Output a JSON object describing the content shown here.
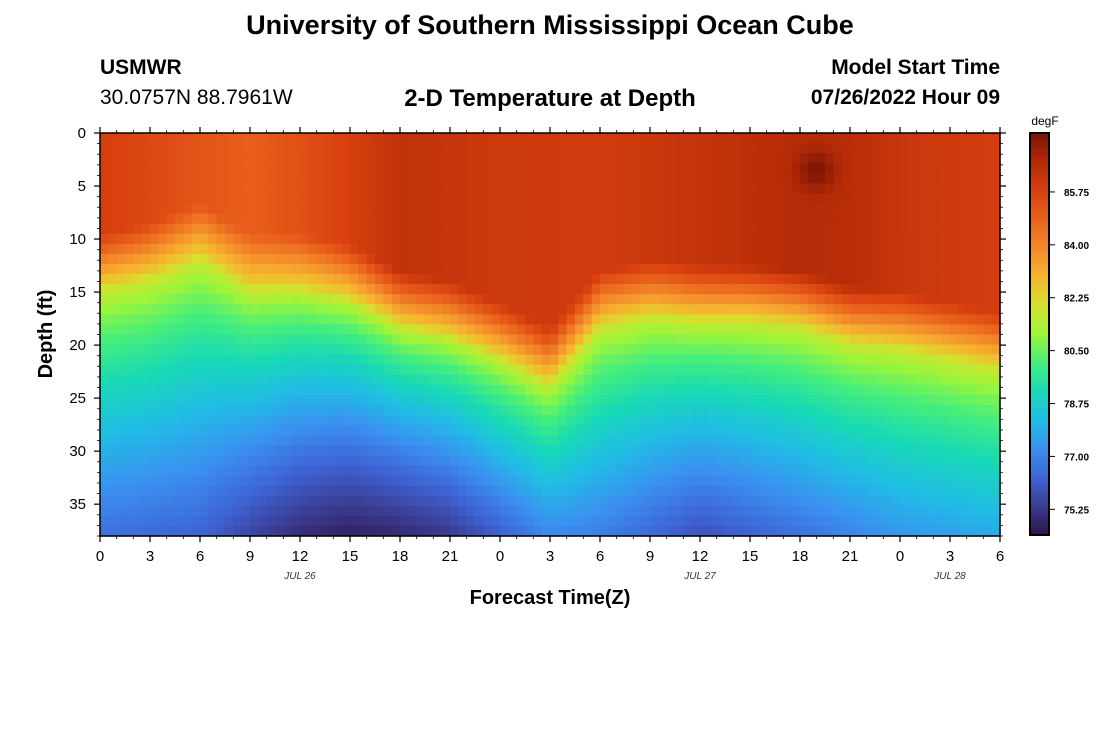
{
  "page": {
    "title_top": "University of Southern Mississippi Ocean Cube",
    "title_bottom": "University of Southern Mississippi Ocean Cube",
    "station_id": "USMWR",
    "coordinates": "30.0757N  88.7961W",
    "subtitle": "2-D Temperature at Depth",
    "model_start_label": "Model Start Time",
    "model_start_value": "07/26/2022 Hour 09"
  },
  "chart_data": {
    "type": "heatmap",
    "title": "2-D Temperature at Depth",
    "xlabel": "Forecast Time(Z)",
    "ylabel": "Depth (ft)",
    "x_ticks": [
      "0",
      "3",
      "6",
      "9",
      "12",
      "15",
      "18",
      "21",
      "0",
      "3",
      "6",
      "9",
      "12",
      "15",
      "18",
      "21",
      "0",
      "3",
      "6"
    ],
    "x_tick_hours": [
      0,
      3,
      6,
      9,
      12,
      15,
      18,
      21,
      24,
      27,
      30,
      33,
      36,
      39,
      42,
      45,
      48,
      51,
      54
    ],
    "date_labels": [
      {
        "text": "JUL 26",
        "hour": 12
      },
      {
        "text": "JUL 27",
        "hour": 36
      },
      {
        "text": "JUL 28",
        "hour": 51
      }
    ],
    "xlim": [
      0,
      54
    ],
    "y_ticks": [
      "0",
      "5",
      "10",
      "15",
      "20",
      "25",
      "30",
      "35"
    ],
    "y_tick_values": [
      0,
      5,
      10,
      15,
      20,
      25,
      30,
      35
    ],
    "ylim": [
      0,
      38
    ],
    "colorbar": {
      "unit": "degF",
      "ticks": [
        "85.75",
        "84.00",
        "82.25",
        "80.50",
        "78.75",
        "77.00",
        "75.25"
      ],
      "tick_values": [
        85.75,
        84.0,
        82.25,
        80.5,
        78.75,
        77.0,
        75.25
      ],
      "range": [
        74.4,
        87.7
      ],
      "colors": [
        "#2e1548",
        "#3a3b90",
        "#3e63d4",
        "#3b8ff0",
        "#20bde5",
        "#18d9b5",
        "#45ee7c",
        "#9cf53a",
        "#d5e12d",
        "#f7b42f",
        "#f3892a",
        "#e9601c",
        "#d8400f",
        "#b22a07",
        "#7a1204"
      ]
    },
    "series": [
      {
        "name": "thermocline_depth_ft",
        "x_hours": [
          0,
          3,
          6,
          9,
          12,
          15,
          18,
          21,
          24,
          27,
          30,
          33,
          36,
          39,
          42,
          45,
          48,
          51,
          54
        ],
        "values": [
          14.5,
          13.5,
          11.5,
          14.5,
          14.5,
          15.5,
          18,
          19,
          21,
          23.5,
          18,
          17,
          17.5,
          17.5,
          18,
          19.5,
          20,
          21,
          22
        ]
      },
      {
        "name": "bottom_min_temp_degF",
        "x_hours": [
          0,
          6,
          9,
          12,
          15,
          18,
          21,
          24,
          27,
          30,
          36,
          42,
          48,
          54
        ],
        "values": [
          76.6,
          76.3,
          75.6,
          75.0,
          74.7,
          74.9,
          75.3,
          76.2,
          77.1,
          76.9,
          75.9,
          76.6,
          77.4,
          77.8
        ]
      },
      {
        "name": "surface_temp_degF",
        "x_hours": [
          0,
          6,
          9,
          12,
          18,
          24,
          30,
          36,
          42,
          45,
          48,
          54
        ],
        "values": [
          85.9,
          85.2,
          84.9,
          85.3,
          86.4,
          86.1,
          86.0,
          86.3,
          86.7,
          86.6,
          86.2,
          85.9
        ]
      },
      {
        "name": "warm_core_anomaly",
        "hour": 43,
        "depth_ft": 3.5,
        "value_degF": 87.6
      }
    ]
  }
}
